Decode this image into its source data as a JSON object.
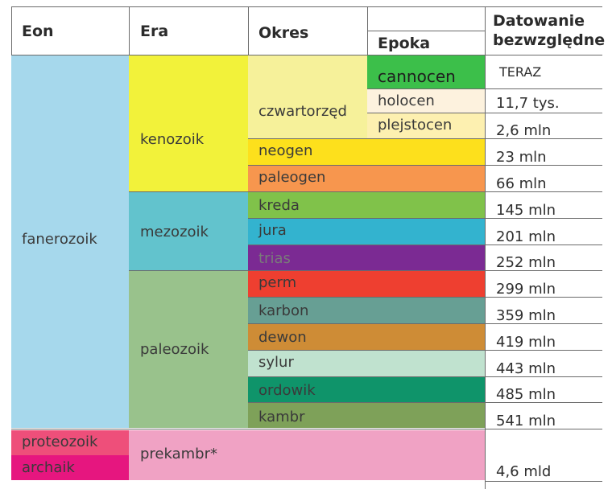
{
  "headers": {
    "eon": "Eon",
    "era": "Era",
    "okres": "Okres",
    "epoka": "Epoka",
    "datowanie_line1": "Datowanie",
    "datowanie_line2": "bezwzględne"
  },
  "eons": {
    "fanerozoik": "fanerozoik",
    "proteozoik": "proteozoik",
    "archaik": "archaik"
  },
  "eras": {
    "kenozoik": "kenozoik",
    "mezozoik": "mezozoik",
    "paleozoik": "paleozoik",
    "prekambr": "prekambr*"
  },
  "periods": {
    "czwartorzed": "czwartorzęd",
    "neogen": "neogen",
    "paleogen": "paleogen",
    "kreda": "kreda",
    "jura": "jura",
    "trias": "trias",
    "perm": "perm",
    "karbon": "karbon",
    "dewon": "dewon",
    "sylur": "sylur",
    "ordowik": "ordowik",
    "kambr": "kambr"
  },
  "epochs": {
    "cannocen": "cannocen",
    "holocen": "holocen",
    "plejstocen": "plejstocen"
  },
  "dates": {
    "teraz": "TERAZ",
    "holocen": "11,7 tys.",
    "plejstocen": "2,6 mln",
    "neogen": "23 mln",
    "paleogen": "66 mln",
    "kreda": "145 mln",
    "jura": "201 mln",
    "trias": "252 mln",
    "perm": "299 mln",
    "karbon": "359 mln",
    "dewon": "419 mln",
    "sylur": "443 mln",
    "ordowik": "485 mln",
    "kambr": "541 mln",
    "prekambr": "4,6 mld"
  },
  "colors": {
    "fanerozoik": "#a6d8ec",
    "kenozoik": "#f2f23a",
    "czwartorzed": "#f6f19a",
    "cannocen": "#3cbf4a",
    "holocen": "#fdf2de",
    "plejstocen": "#fdf0b0",
    "neogen": "#fde01c",
    "paleogen": "#f7964e",
    "mezozoik": "#62c3cd",
    "kreda": "#80c24a",
    "jura": "#33b3cf",
    "trias": "#7b2a93",
    "paleozoik": "#99c28c",
    "perm": "#ee3f30",
    "karbon": "#679f94",
    "dewon": "#ce8c36",
    "sylur": "#c0e2cf",
    "ordowik": "#0f946a",
    "kambr": "#7ea159",
    "proteozoik": "#ee4f7a",
    "archaik": "#e6167f",
    "prekambr": "#f0a2c4"
  }
}
